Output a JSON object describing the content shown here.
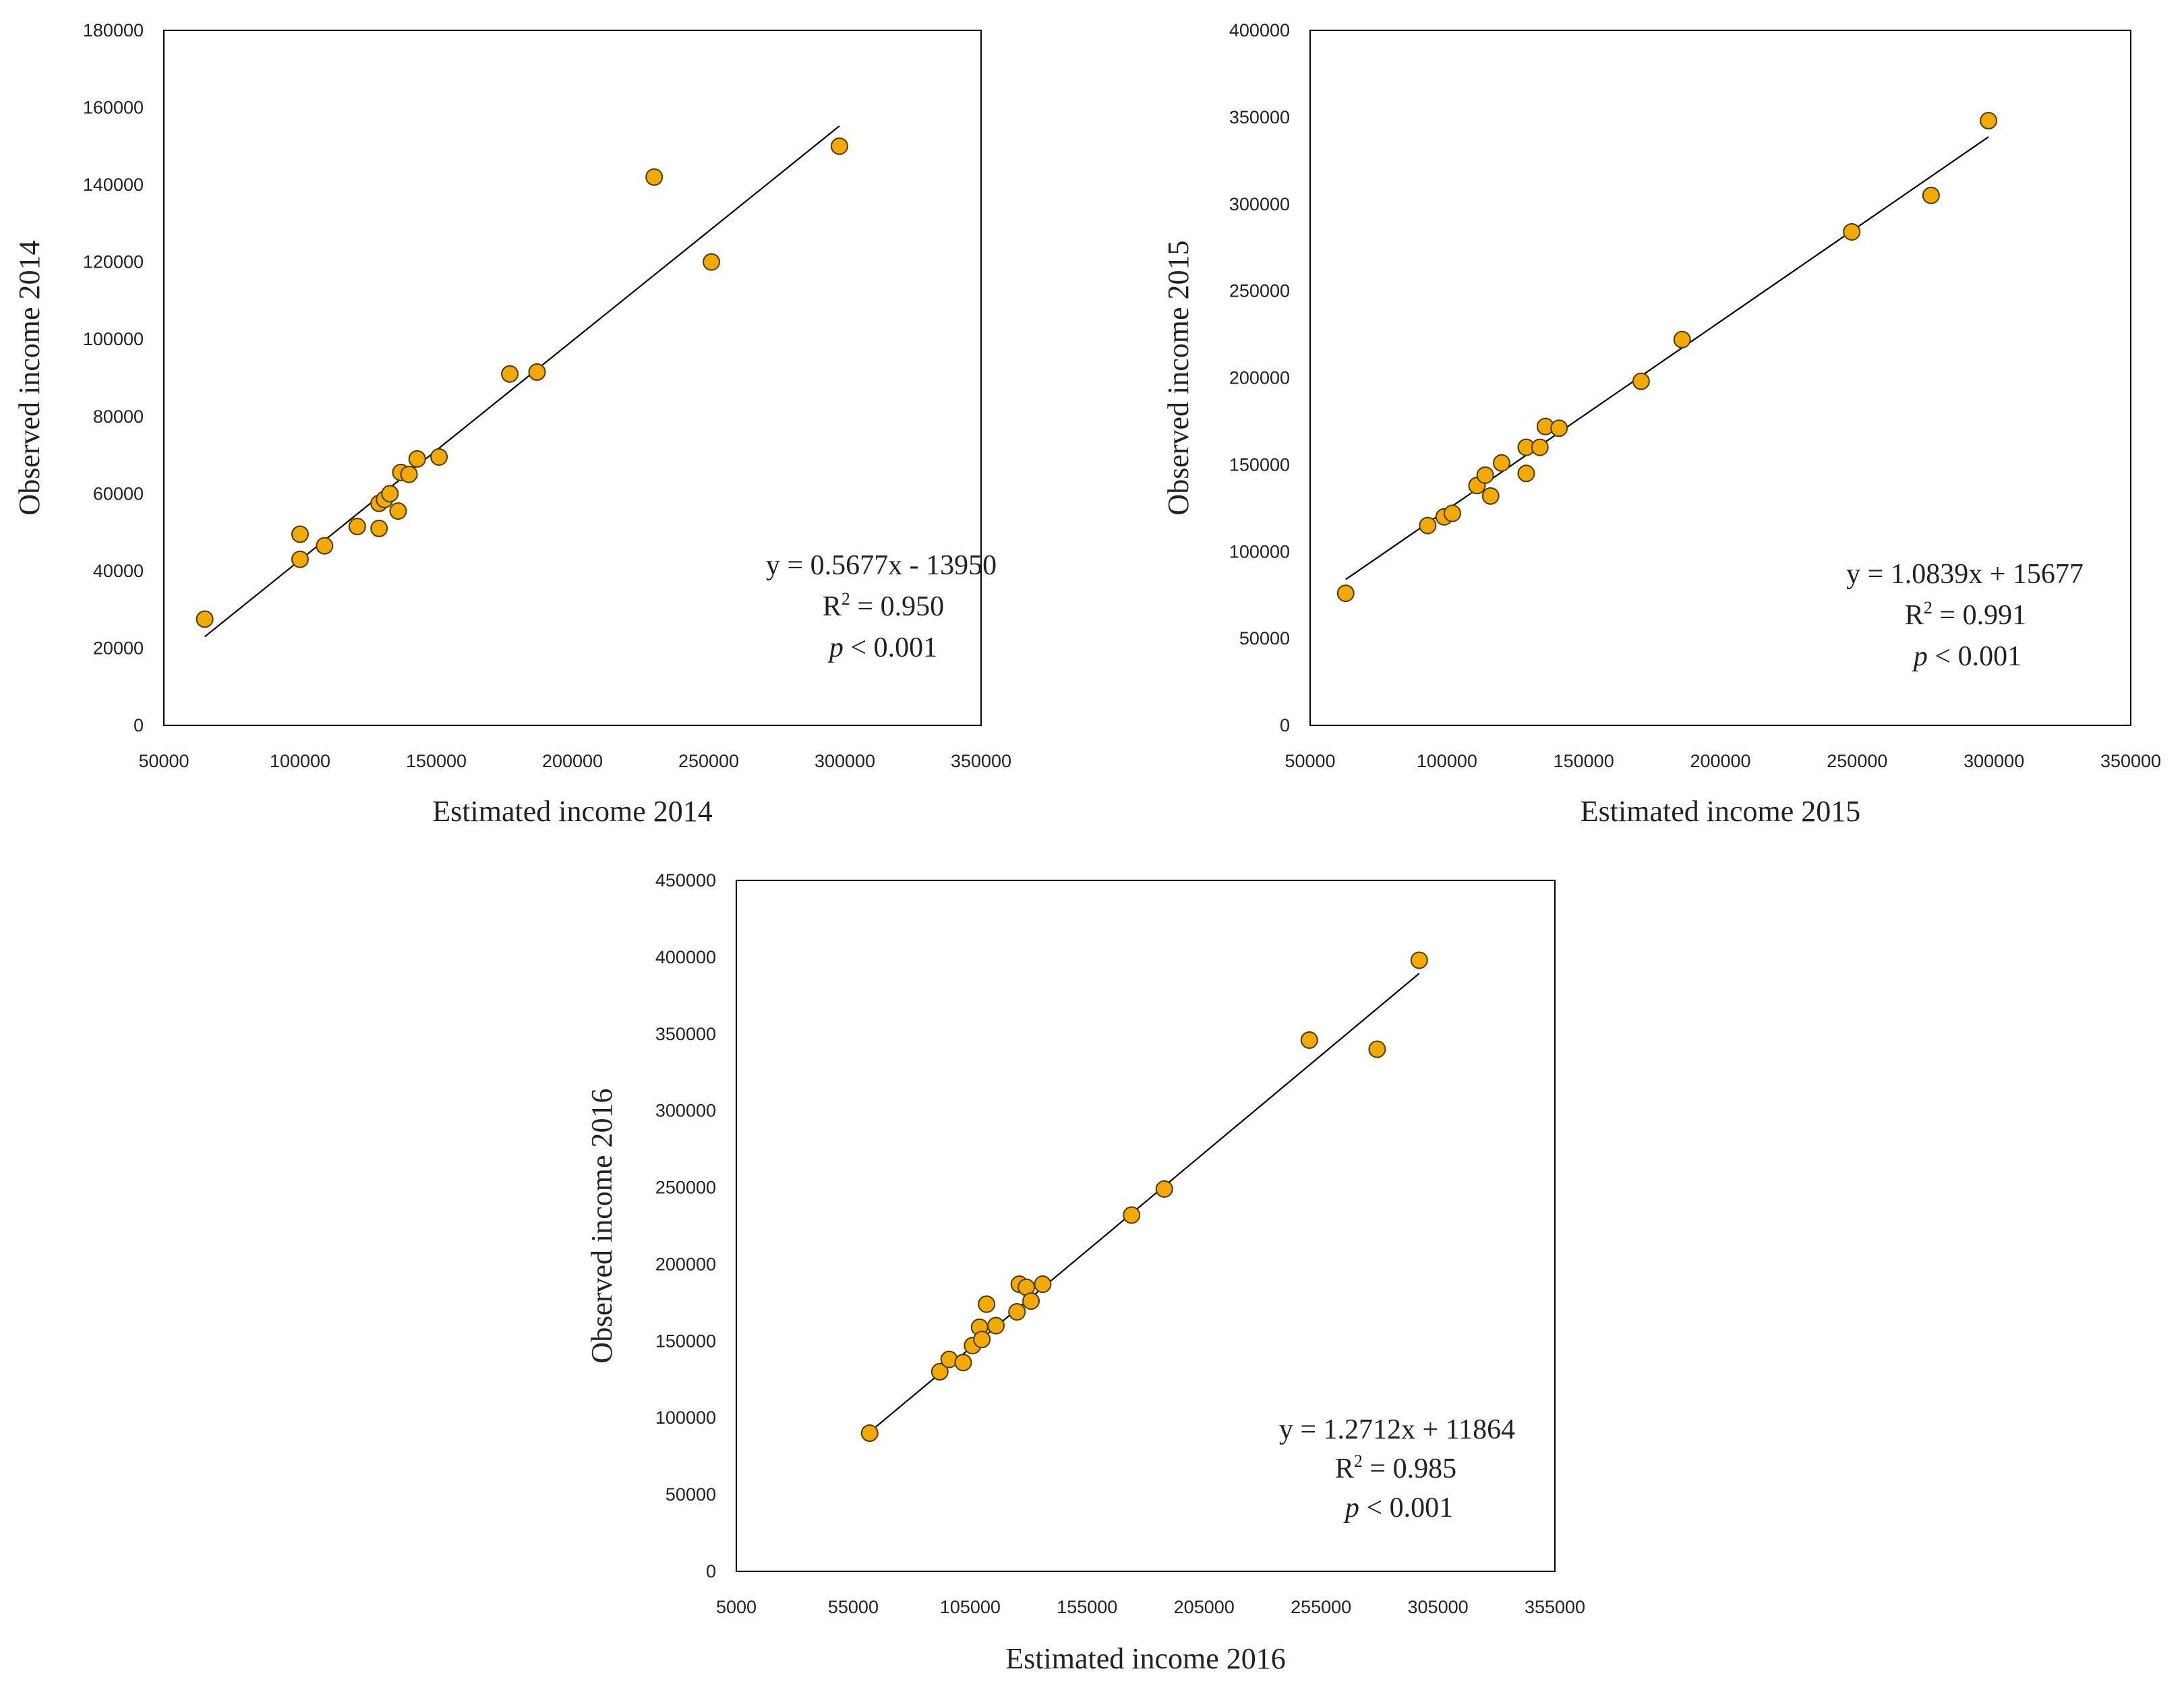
{
  "colors": {
    "marker_fill": "#f2a900",
    "marker_stroke": "#4a3a00",
    "frame": "#000000",
    "fit_line": "#000000"
  },
  "chart_data": [
    {
      "type": "scatter",
      "id": "chart-2014",
      "xlabel": "Estimated income 2014",
      "ylabel": "Observed income 2014",
      "xlim": [
        50000,
        350000
      ],
      "ylim": [
        0,
        180000
      ],
      "xticks": [
        50000,
        100000,
        150000,
        200000,
        250000,
        300000,
        350000
      ],
      "yticks": [
        0,
        20000,
        40000,
        60000,
        80000,
        100000,
        120000,
        140000,
        160000,
        180000
      ],
      "x": [
        65000,
        100000,
        100000,
        109000,
        121000,
        129000,
        129000,
        131000,
        133000,
        136000,
        137000,
        140000,
        143000,
        151000,
        177000,
        187000,
        230000,
        251000,
        298000
      ],
      "y": [
        27500,
        49500,
        43000,
        46500,
        51500,
        51000,
        57500,
        58500,
        60000,
        55500,
        65500,
        65000,
        69000,
        69500,
        91000,
        91500,
        142000,
        120000,
        150000
      ],
      "trendline": {
        "x": [
          65000,
          298000
        ],
        "y": [
          22950.5,
          155224.6
        ]
      },
      "equation": "y = 0.5677x - 13950",
      "r2_label": "R",
      "r2_sup": "2",
      "r2_value": " = 0.950",
      "p_label": "p",
      "p_value": " < 0.001"
    },
    {
      "type": "scatter",
      "id": "chart-2015",
      "xlabel": "Estimated income 2015",
      "ylabel": "Observed income 2015",
      "xlim": [
        50000,
        350000
      ],
      "ylim": [
        0,
        400000
      ],
      "xticks": [
        50000,
        100000,
        150000,
        200000,
        250000,
        300000,
        350000
      ],
      "yticks": [
        0,
        50000,
        100000,
        150000,
        200000,
        250000,
        300000,
        350000,
        400000
      ],
      "x": [
        63000,
        93000,
        99000,
        102000,
        111000,
        114000,
        116000,
        120000,
        129000,
        129000,
        134000,
        136000,
        141000,
        171000,
        186000,
        248000,
        277000,
        298000
      ],
      "y": [
        76000,
        115000,
        120000,
        122000,
        138000,
        144000,
        132000,
        151000,
        160000,
        145000,
        160000,
        172000,
        171000,
        198000,
        222000,
        284000,
        305000,
        348000
      ],
      "trendline": {
        "x": [
          63000,
          298000
        ],
        "y": [
          83962.7,
          338679.2
        ]
      },
      "equation": "y = 1.0839x + 15677",
      "r2_label": "R",
      "r2_sup": "2",
      "r2_value": " = 0.991",
      "p_label": "p",
      "p_value": " < 0.001"
    },
    {
      "type": "scatter",
      "id": "chart-2016",
      "xlabel": "Estimated income 2016",
      "ylabel": "Observed income 2016",
      "xlim": [
        5000,
        355000
      ],
      "ylim": [
        0,
        450000
      ],
      "xticks": [
        5000,
        55000,
        105000,
        155000,
        205000,
        255000,
        305000,
        355000
      ],
      "yticks": [
        0,
        50000,
        100000,
        150000,
        200000,
        250000,
        300000,
        350000,
        400000,
        450000
      ],
      "x": [
        62000,
        92000,
        96000,
        102000,
        106000,
        109000,
        110000,
        112000,
        116000,
        125000,
        126000,
        129000,
        131000,
        136000,
        174000,
        188000,
        250000,
        279000,
        297000
      ],
      "y": [
        90000,
        130000,
        138000,
        136000,
        147000,
        159000,
        151000,
        174000,
        160000,
        169000,
        187000,
        185000,
        176000,
        187000,
        232000,
        249000,
        346000,
        340000,
        398000
      ],
      "trendline": {
        "x": [
          62000,
          297000
        ],
        "y": [
          90678.4,
          389410.4
        ]
      },
      "equation": "y = 1.2712x + 11864",
      "r2_label": "R",
      "r2_sup": "2",
      "r2_value": " = 0.985",
      "p_label": "p",
      "p_value": " < 0.001"
    }
  ]
}
